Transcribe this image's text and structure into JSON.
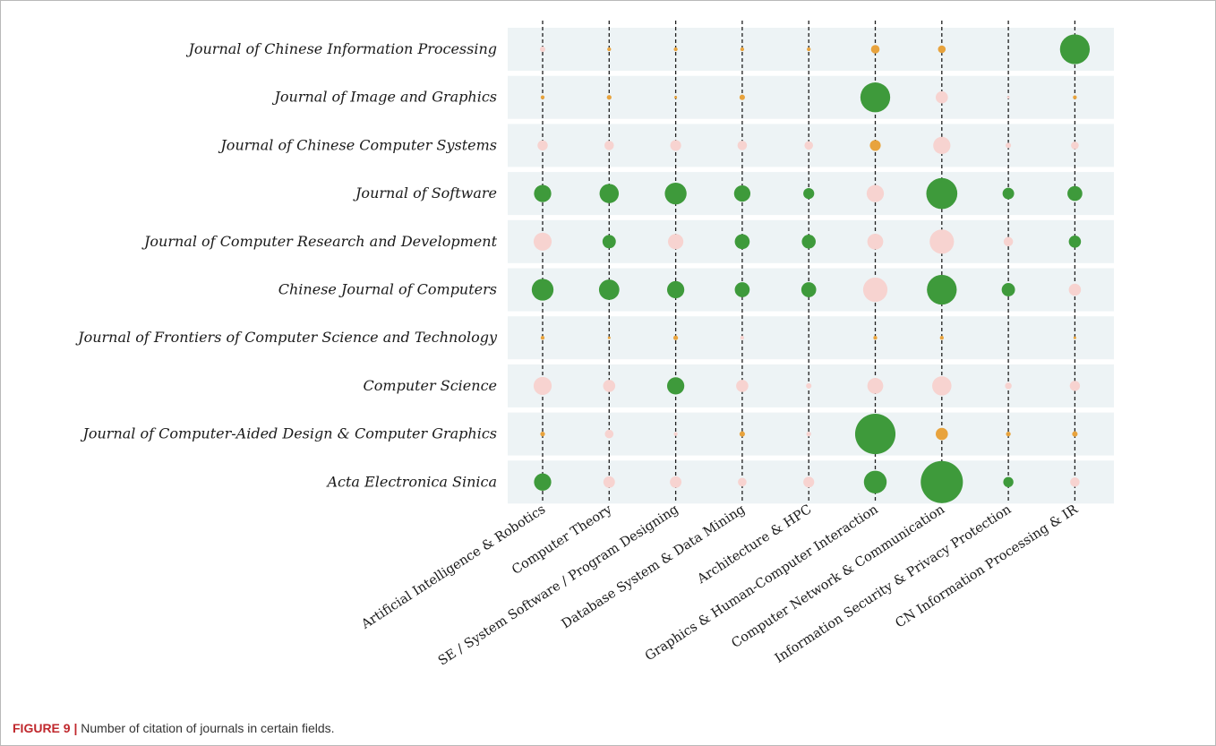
{
  "caption": {
    "label": "FIGURE 9 |",
    "text": " Number of citation of journals in certain fields."
  },
  "chart_data": {
    "type": "bubble",
    "rows": [
      "Journal of Chinese Information Processing",
      "Journal of Image and Graphics",
      "Journal of Chinese Computer Systems",
      "Journal of Software",
      "Journal of Computer Research and Development",
      "Chinese Journal of Computers",
      "Journal of Frontiers of Computer Science and Technology",
      "Computer Science",
      "Journal of Computer-Aided Design & Computer Graphics",
      "Acta Electronica Sinica"
    ],
    "columns": [
      "Artificial Intelligence & Robotics",
      "Computer Theory",
      "SE / System Software / Program Designing",
      "Database System & Data Mining",
      "Architecture & HPC",
      "Graphics & Human-Computer Interaction",
      "Computer Network & Communication",
      "Information Security & Privacy Protection",
      "CN Information Processing & IR"
    ],
    "size_scale": "relative",
    "colors": {
      "low": "#e8a33d",
      "medium": "#f7d3d0",
      "high": "#3e9a3b",
      "row_band": "#edf3f5",
      "gridline": "#1f1f1f"
    },
    "cells": [
      [
        [
          2,
          "medium"
        ],
        [
          1,
          "low"
        ],
        [
          1,
          "low"
        ],
        [
          1,
          "low"
        ],
        [
          1,
          "low"
        ],
        [
          5,
          "low"
        ],
        [
          4,
          "low"
        ],
        [
          0,
          "low"
        ],
        [
          60,
          "high"
        ]
      ],
      [
        [
          1,
          "low"
        ],
        [
          1.5,
          "low"
        ],
        [
          0.5,
          "low"
        ],
        [
          2,
          "low"
        ],
        [
          0,
          "low"
        ],
        [
          60,
          "high"
        ],
        [
          10,
          "medium"
        ],
        [
          0.5,
          "medium"
        ],
        [
          1,
          "low"
        ]
      ],
      [
        [
          7,
          "medium"
        ],
        [
          6,
          "medium"
        ],
        [
          8,
          "medium"
        ],
        [
          6,
          "medium"
        ],
        [
          5,
          "medium"
        ],
        [
          8,
          "low"
        ],
        [
          20,
          "medium"
        ],
        [
          2,
          "medium"
        ],
        [
          4,
          "medium"
        ]
      ],
      [
        [
          20,
          "high"
        ],
        [
          25,
          "high"
        ],
        [
          32,
          "high"
        ],
        [
          18,
          "high"
        ],
        [
          8,
          "high"
        ],
        [
          20,
          "medium"
        ],
        [
          65,
          "high"
        ],
        [
          9,
          "high"
        ],
        [
          15,
          "high"
        ]
      ],
      [
        [
          22,
          "medium"
        ],
        [
          12,
          "high"
        ],
        [
          16,
          "medium"
        ],
        [
          15,
          "high"
        ],
        [
          13,
          "high"
        ],
        [
          17,
          "medium"
        ],
        [
          40,
          "medium"
        ],
        [
          6,
          "medium"
        ],
        [
          10,
          "high"
        ]
      ],
      [
        [
          32,
          "high"
        ],
        [
          28,
          "high"
        ],
        [
          20,
          "high"
        ],
        [
          15,
          "high"
        ],
        [
          15,
          "high"
        ],
        [
          40,
          "medium"
        ],
        [
          60,
          "high"
        ],
        [
          12,
          "high"
        ],
        [
          10,
          "medium"
        ]
      ],
      [
        [
          1,
          "low"
        ],
        [
          0.5,
          "low"
        ],
        [
          1.5,
          "low"
        ],
        [
          1,
          "medium"
        ],
        [
          0,
          "low"
        ],
        [
          1,
          "low"
        ],
        [
          1,
          "low"
        ],
        [
          0,
          "low"
        ],
        [
          0.5,
          "low"
        ]
      ],
      [
        [
          22,
          "medium"
        ],
        [
          10,
          "medium"
        ],
        [
          20,
          "high"
        ],
        [
          10,
          "medium"
        ],
        [
          2,
          "medium"
        ],
        [
          17,
          "medium"
        ],
        [
          25,
          "medium"
        ],
        [
          3,
          "medium"
        ],
        [
          7,
          "medium"
        ]
      ],
      [
        [
          1.5,
          "low"
        ],
        [
          5,
          "medium"
        ],
        [
          1,
          "medium"
        ],
        [
          2,
          "low"
        ],
        [
          1.5,
          "medium"
        ],
        [
          110,
          "high"
        ],
        [
          10,
          "low"
        ],
        [
          1.5,
          "low"
        ],
        [
          2,
          "low"
        ]
      ],
      [
        [
          20,
          "high"
        ],
        [
          9,
          "medium"
        ],
        [
          9,
          "medium"
        ],
        [
          5,
          "medium"
        ],
        [
          8,
          "medium"
        ],
        [
          35,
          "high"
        ],
        [
          120,
          "high"
        ],
        [
          7,
          "high"
        ],
        [
          6,
          "medium"
        ]
      ]
    ]
  }
}
